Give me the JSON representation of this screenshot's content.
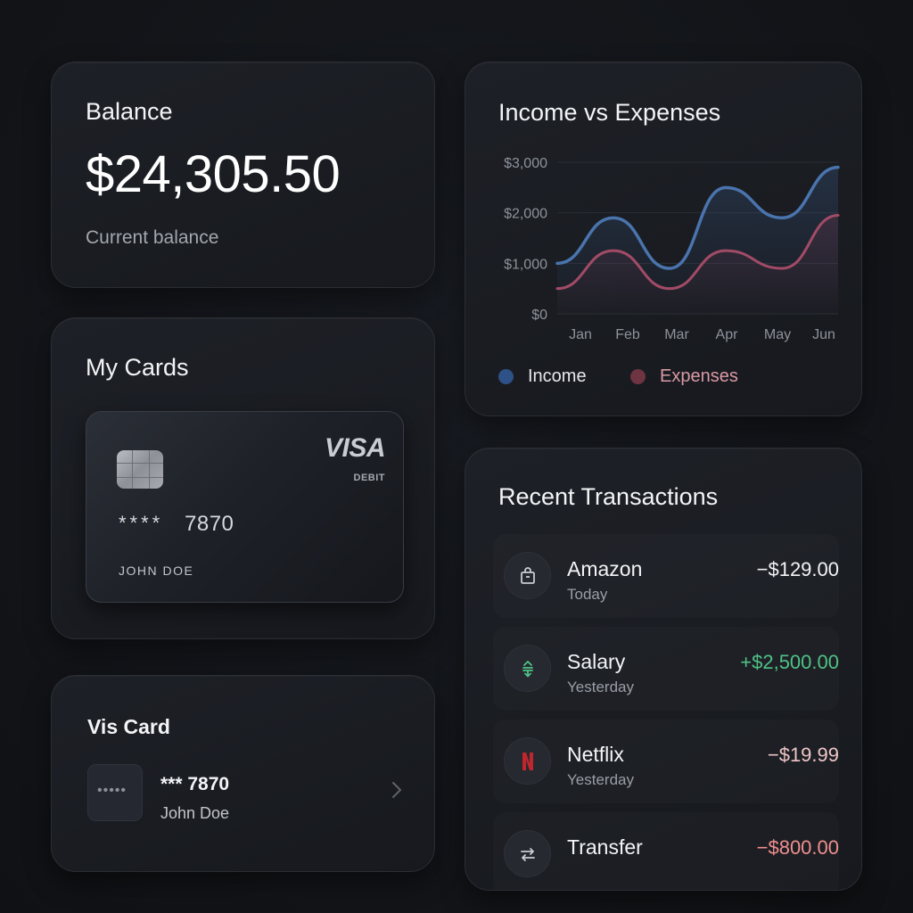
{
  "balance": {
    "title": "Balance",
    "amount": "$24,305.50",
    "subtitle": "Current balance"
  },
  "cards": {
    "title": "My Cards",
    "card": {
      "brand": "VISA",
      "type": "DEBIT",
      "mask": "****",
      "last4": "7870",
      "holder": "JOHN DOE"
    }
  },
  "vis_card": {
    "title": "Vis Card",
    "thumb": "•••••",
    "number": "*** 7870",
    "name": "John Doe",
    "chevron_icon": "chevron-right-icon"
  },
  "chart_data": {
    "type": "line",
    "title": "Income vs Expenses",
    "categories": [
      "Jan",
      "Feb",
      "Mar",
      "Apr",
      "May",
      "Jun"
    ],
    "y_ticks": [
      "$3,000",
      "$2,000",
      "$1,000",
      "$0"
    ],
    "ylim": [
      0,
      3000
    ],
    "grid": true,
    "legend_position": "bottom-left",
    "series": [
      {
        "name": "Income",
        "color": "#4a74ad",
        "values": [
          1000,
          1900,
          900,
          2500,
          1900,
          2900
        ]
      },
      {
        "name": "Expenses",
        "color": "#a24b67",
        "values": [
          500,
          1250,
          500,
          1250,
          900,
          1950
        ]
      }
    ],
    "legend_colors": {
      "income": "#2e5287",
      "expenses": "#6f3441"
    },
    "legend_text_colors": {
      "income": "#e6e8ec",
      "expenses": "#d99aa4"
    }
  },
  "transactions": {
    "title": "Recent Transactions",
    "items": [
      {
        "name": "Amazon",
        "date": "Today",
        "amount": "−$129.00",
        "color": "#f3f4f6",
        "icon": "shopping-bag-icon"
      },
      {
        "name": "Salary",
        "date": "Yesterday",
        "amount": "+$2,500.00",
        "color": "#4fc285",
        "icon": "transfer-arrows-icon"
      },
      {
        "name": "Netflix",
        "date": "Yesterday",
        "amount": "−$19.99",
        "color": "#eec6c6",
        "icon": "netflix-icon"
      },
      {
        "name": "Transfer",
        "date": "",
        "amount": "−$800.00",
        "color": "#f08f8f",
        "icon": "swap-arrows-icon"
      }
    ]
  }
}
